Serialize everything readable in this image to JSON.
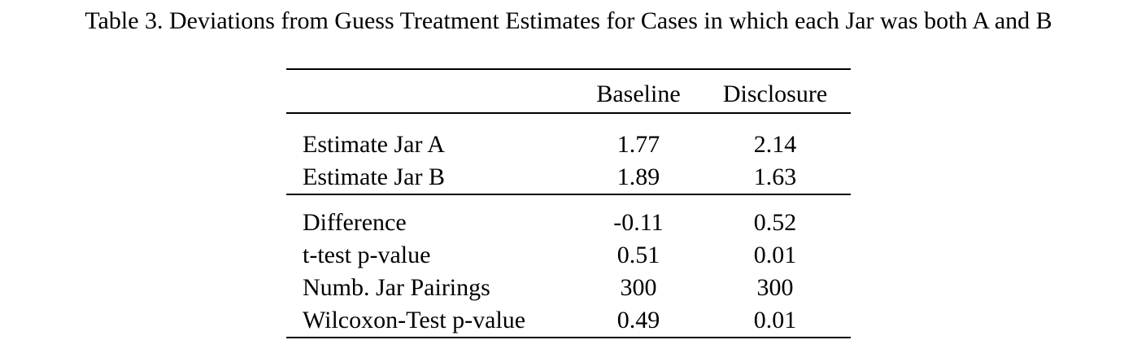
{
  "caption": "Table 3. Deviations from Guess Treatment Estimates for Cases in which each Jar was both A and B",
  "table": {
    "columns": [
      "Baseline",
      "Disclosure"
    ],
    "group1": [
      {
        "label": "Estimate Jar A",
        "baseline": "1.77",
        "disclosure": "2.14"
      },
      {
        "label": "Estimate Jar B",
        "baseline": "1.89",
        "disclosure": "1.63"
      }
    ],
    "group2": [
      {
        "label": "Difference",
        "baseline": "-0.11",
        "disclosure": "0.52"
      },
      {
        "label": "t-test p-value",
        "baseline": "0.51",
        "disclosure": "0.01"
      },
      {
        "label": "Numb. Jar Pairings",
        "baseline": "300",
        "disclosure": "300"
      },
      {
        "label": "Wilcoxon-Test p-value",
        "baseline": "0.49",
        "disclosure": "0.01"
      }
    ]
  }
}
